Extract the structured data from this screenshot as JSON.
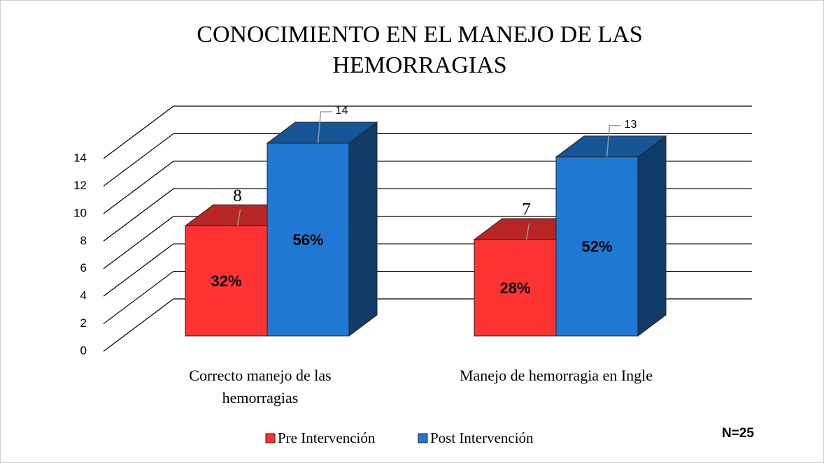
{
  "chart_data": {
    "type": "bar3d",
    "title": [
      "CONOCIMIENTO EN EL MANEJO DE LAS",
      "HEMORRAGIAS"
    ],
    "categories": [
      [
        "Correcto manejo de las",
        "hemorragias"
      ],
      [
        "Manejo de hemorragia en Ingle"
      ]
    ],
    "series": [
      {
        "name": "Pre Intervención",
        "color": "#ff3333",
        "values": [
          8,
          7
        ],
        "percent_labels": [
          "32%",
          "28%"
        ]
      },
      {
        "name": "Post Intervención",
        "color": "#1f78d1",
        "values": [
          14,
          13
        ],
        "percent_labels": [
          "56%",
          "52%"
        ]
      }
    ],
    "ylim": [
      0,
      14
    ],
    "yticks": [
      0,
      2,
      4,
      6,
      8,
      10,
      12,
      14
    ],
    "grid": true,
    "legend": "bottom",
    "annotation": "N=25"
  }
}
